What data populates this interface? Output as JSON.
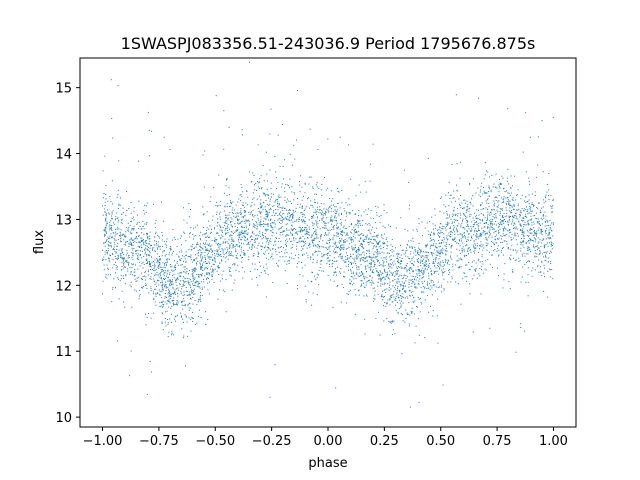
{
  "chart_data": {
    "type": "scatter",
    "title": "1SWASPJ083356.51-243036.9 Period 1795676.875s",
    "xlabel": "phase",
    "ylabel": "flux",
    "xlim": [
      -1.1,
      1.1
    ],
    "ylim": [
      9.85,
      15.45
    ],
    "x_ticks": [
      -1.0,
      -0.75,
      -0.5,
      -0.25,
      0.0,
      0.25,
      0.5,
      0.75,
      1.0
    ],
    "x_tick_labels": [
      "−1.00",
      "−0.75",
      "−0.50",
      "−0.25",
      "0.00",
      "0.25",
      "0.50",
      "0.75",
      "1.00"
    ],
    "y_ticks": [
      10,
      11,
      12,
      13,
      14,
      15
    ],
    "y_tick_labels": [
      "10",
      "11",
      "12",
      "13",
      "14",
      "15"
    ],
    "grid": false,
    "point_color": "#1f77b4",
    "series": [
      {
        "phase_profile": [
          {
            "x": -1.0,
            "y": 12.8
          },
          {
            "x": -0.9,
            "y": 12.6
          },
          {
            "x": -0.8,
            "y": 12.45
          },
          {
            "x": -0.7,
            "y": 12.0
          },
          {
            "x": -0.62,
            "y": 12.1
          },
          {
            "x": -0.55,
            "y": 12.35
          },
          {
            "x": -0.45,
            "y": 12.75
          },
          {
            "x": -0.35,
            "y": 12.85
          },
          {
            "x": -0.25,
            "y": 13.0
          },
          {
            "x": -0.15,
            "y": 12.9
          },
          {
            "x": -0.05,
            "y": 12.8
          },
          {
            "x": 0.0,
            "y": 12.8
          },
          {
            "x": 0.1,
            "y": 12.6
          },
          {
            "x": 0.2,
            "y": 12.45
          },
          {
            "x": 0.3,
            "y": 12.0
          },
          {
            "x": 0.38,
            "y": 12.1
          },
          {
            "x": 0.45,
            "y": 12.35
          },
          {
            "x": 0.55,
            "y": 12.75
          },
          {
            "x": 0.65,
            "y": 12.85
          },
          {
            "x": 0.75,
            "y": 13.0
          },
          {
            "x": 0.85,
            "y": 12.9
          },
          {
            "x": 0.95,
            "y": 12.8
          },
          {
            "x": 1.0,
            "y": 12.8
          }
        ],
        "scatter_spread": 0.35,
        "n_points": 5200
      }
    ]
  }
}
